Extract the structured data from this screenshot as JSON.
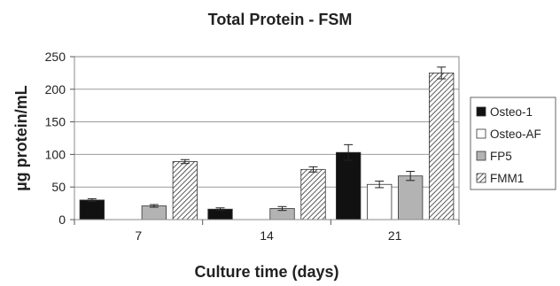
{
  "chart_data": {
    "type": "bar",
    "title": "Total Protein - FSM",
    "xlabel": "Culture time (days)",
    "ylabel": "µg protein/mL",
    "categories": [
      "7",
      "14",
      "21"
    ],
    "ylim": [
      0,
      250
    ],
    "yticks": [
      "0",
      "50",
      "100",
      "150",
      "200",
      "250"
    ],
    "grid": true,
    "legend_position": "right",
    "series": [
      {
        "name": "Osteo-1",
        "values": [
          30,
          16,
          103
        ],
        "errors": [
          2,
          2,
          12
        ],
        "fill": "#111111",
        "pattern": "solid"
      },
      {
        "name": "Osteo-AF",
        "values": [
          0,
          0,
          54
        ],
        "errors": [
          0,
          0,
          5
        ],
        "fill": "#ffffff",
        "pattern": "solid"
      },
      {
        "name": "FP5",
        "values": [
          21,
          17,
          67
        ],
        "errors": [
          2,
          3,
          7
        ],
        "fill": "#b3b3b3",
        "pattern": "solid"
      },
      {
        "name": "FMM1",
        "values": [
          89,
          77,
          225
        ],
        "errors": [
          3,
          4,
          9
        ],
        "fill": "#ffffff",
        "pattern": "hatch"
      }
    ]
  }
}
